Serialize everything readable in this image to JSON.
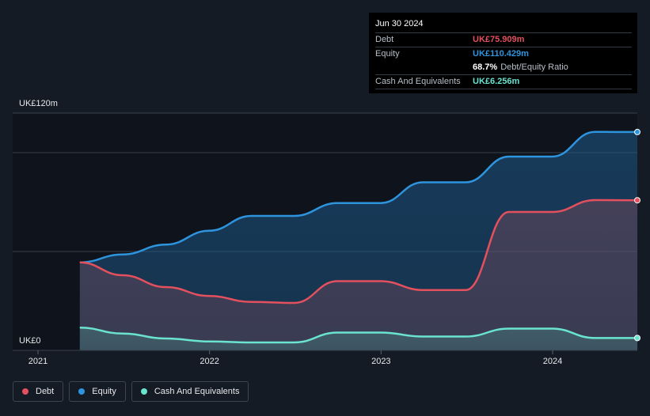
{
  "tooltip": {
    "date": "Jun 30 2024",
    "rows": [
      {
        "label": "Debt",
        "value": "UK£75.909m"
      },
      {
        "label": "Equity",
        "value": "UK£110.429m"
      },
      {
        "label": "",
        "value": "68.7%",
        "note": "Debt/Equity Ratio"
      },
      {
        "label": "Cash And Equivalents",
        "value": "UK£6.256m"
      }
    ]
  },
  "colors": {
    "debt": "#e4505e",
    "equity": "#2e94de",
    "cash": "#6ae3cf",
    "background": "#151b24",
    "grid": "#39414c"
  },
  "chart_data": {
    "type": "area",
    "x_ticks": [
      "2021",
      "2022",
      "2023",
      "2024"
    ],
    "y_tick_labels": [
      "UK£120m",
      "UK£0"
    ],
    "ylim": [
      0,
      120
    ],
    "legend_position": "bottom-left",
    "grid": true,
    "series": [
      {
        "name": "Debt",
        "color": "#e4505e",
        "points": [
          [
            "2021-03-31",
            44.5
          ],
          [
            "2021-06-30",
            38
          ],
          [
            "2021-09-30",
            32
          ],
          [
            "2021-12-31",
            27.5
          ],
          [
            "2022-03-31",
            24.5
          ],
          [
            "2022-06-30",
            24
          ],
          [
            "2022-09-30",
            35
          ],
          [
            "2022-12-31",
            35
          ],
          [
            "2023-03-31",
            30.5
          ],
          [
            "2023-06-30",
            30.5
          ],
          [
            "2023-09-30",
            70
          ],
          [
            "2023-12-31",
            70
          ],
          [
            "2024-03-31",
            76
          ],
          [
            "2024-06-30",
            75.909
          ]
        ]
      },
      {
        "name": "Equity",
        "color": "#2e94de",
        "points": [
          [
            "2021-03-31",
            44.5
          ],
          [
            "2021-06-30",
            48.5
          ],
          [
            "2021-09-30",
            53.5
          ],
          [
            "2021-12-31",
            60.5
          ],
          [
            "2022-03-31",
            68
          ],
          [
            "2022-06-30",
            68
          ],
          [
            "2022-09-30",
            74.5
          ],
          [
            "2022-12-31",
            74.5
          ],
          [
            "2023-03-31",
            85
          ],
          [
            "2023-06-30",
            85
          ],
          [
            "2023-09-30",
            98
          ],
          [
            "2023-12-31",
            98
          ],
          [
            "2024-03-31",
            110.5
          ],
          [
            "2024-06-30",
            110.429
          ]
        ]
      },
      {
        "name": "Cash And Equivalents",
        "color": "#6ae3cf",
        "points": [
          [
            "2021-03-31",
            11.5
          ],
          [
            "2021-06-30",
            8.5
          ],
          [
            "2021-09-30",
            6
          ],
          [
            "2021-12-31",
            4.5
          ],
          [
            "2022-03-31",
            4
          ],
          [
            "2022-06-30",
            4
          ],
          [
            "2022-09-30",
            9
          ],
          [
            "2022-12-31",
            9
          ],
          [
            "2023-03-31",
            7
          ],
          [
            "2023-06-30",
            7
          ],
          [
            "2023-09-30",
            11
          ],
          [
            "2023-12-31",
            11
          ],
          [
            "2024-03-31",
            6.256
          ],
          [
            "2024-06-30",
            6.256
          ]
        ]
      }
    ]
  }
}
